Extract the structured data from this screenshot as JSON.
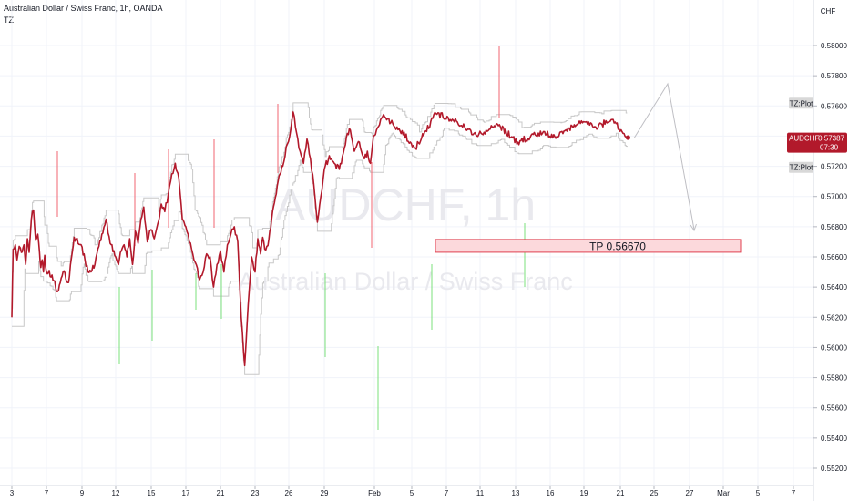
{
  "header": {
    "title": "Australian Dollar / Swiss Franc, 1h, OANDA",
    "indicator": "TZ"
  },
  "currency_label": "CHF",
  "watermark": {
    "symbol": "AUDCHF, 1h",
    "name": "Australian Dollar / Swiss Franc"
  },
  "price_tag": {
    "symbol": "AUDCHF",
    "price": "0.57387",
    "countdown": "07:30"
  },
  "tz_plot_label": "TZ:Plot",
  "tp_label": "TP 0.56670",
  "colors": {
    "price": "#b2192b",
    "wick_up": "#f06570",
    "wick_down": "#7be07b",
    "channel": "#c8c8c8",
    "tp_fill": "#fcd9dc",
    "tp_border": "#e0404f",
    "grid": "#f0f3fa"
  },
  "chart_data": {
    "type": "line",
    "x_ticks": [
      "3",
      "7",
      "9",
      "12",
      "15",
      "17",
      "21",
      "23",
      "26",
      "29",
      "Feb",
      "5",
      "7",
      "11",
      "13",
      "16",
      "19",
      "21",
      "25",
      "27",
      "Mar",
      "5",
      "7"
    ],
    "y_ticks": [
      "0.58000",
      "0.57800",
      "0.57600",
      "0.57400",
      "0.57200",
      "0.57000",
      "0.56800",
      "0.56600",
      "0.56400",
      "0.56200",
      "0.56000",
      "0.55800",
      "0.55600",
      "0.55400",
      "0.55200"
    ],
    "ylim": [
      0.5512,
      0.582
    ],
    "current_price": 0.57387,
    "take_profit": 0.5667,
    "series": [
      {
        "x": [
          0,
          0.3,
          0.8,
          1.2,
          1.7,
          2.2,
          2.8,
          3.2,
          3.6,
          4.0,
          4.5,
          5.0,
          5.5,
          6.0,
          6.4,
          6.7,
          7.0,
          7.3,
          7.6,
          8.0,
          8.4,
          8.8,
          9.2,
          9.6,
          10.0,
          10.5,
          11.0,
          11.5,
          12.0,
          12.3,
          12.6,
          13.0,
          13.4,
          13.8,
          14.2,
          14.6,
          15.0,
          15.4,
          15.8,
          16.2,
          16.6,
          17.0,
          17.5,
          18.0,
          18.5,
          19.0,
          19.5,
          20.0,
          20.5,
          21.0,
          21.5,
          22.0,
          22.5,
          23.0,
          23.5,
          24.0,
          24.5,
          25.0,
          25.5,
          26.0,
          26.5,
          27.0,
          27.5,
          28.0,
          28.5,
          29.0,
          29.5,
          30.0,
          30.5,
          31.0,
          31.5,
          32.0,
          32.5,
          33.0,
          33.4,
          33.8,
          34.1,
          34.4,
          34.7,
          35.0,
          35.4,
          35.8,
          36.2,
          36.6,
          37.0,
          37.5,
          38.0,
          38.5,
          39.0,
          39.5,
          40.0,
          40.5,
          41.0,
          41.5,
          42.0,
          42.5,
          43.0,
          43.5,
          44.0,
          44.5,
          45.0,
          45.5,
          46.0,
          46.5,
          47.0,
          47.3,
          47.6,
          47.9,
          48.2,
          48.6,
          49.0,
          49.5,
          50.0,
          50.5,
          51.0,
          51.5,
          52.0,
          52.5,
          53.0,
          53.4,
          53.8,
          54.2
        ],
        "y": [
          0.562,
          0.5665,
          0.5668,
          0.5658,
          0.5667,
          0.5663,
          0.5668,
          0.5655,
          0.5672,
          0.5663,
          0.5685,
          0.5691,
          0.5671,
          0.5675,
          0.5663,
          0.5653,
          0.5658,
          0.565,
          0.5661,
          0.565,
          0.5648,
          0.5637,
          0.565,
          0.5643,
          0.5673,
          0.5668,
          0.565,
          0.5655,
          0.5675,
          0.5685,
          0.5669,
          0.566,
          0.5655,
          0.5664,
          0.5668,
          0.566,
          0.5672,
          0.5655,
          0.5677,
          0.5669,
          0.5685,
          0.5693,
          0.567,
          0.5678,
          0.5672,
          0.5682,
          0.5695,
          0.569,
          0.5702,
          0.5715,
          0.5722,
          0.5712,
          0.5685,
          0.568,
          0.567,
          0.5662,
          0.5655,
          0.5645,
          0.565,
          0.5662,
          0.566,
          0.564,
          0.5655,
          0.5664,
          0.565,
          0.5668,
          0.5675,
          0.568,
          0.567,
          0.562,
          0.5588,
          0.5628,
          0.566,
          0.565,
          0.5672,
          0.5662,
          0.5673,
          0.5665,
          0.5667,
          0.5672,
          0.5685,
          0.5696,
          0.5707,
          0.5715,
          0.572,
          0.5733,
          0.574,
          0.5756,
          0.5742,
          0.573,
          0.5722,
          0.5738,
          0.5725,
          0.5707,
          0.5683,
          0.57,
          0.5718,
          0.5727,
          0.5722,
          0.5718,
          0.5732,
          0.5745,
          0.573,
          0.5736,
          0.5725,
          0.573,
          0.5722,
          0.574,
          0.5753,
          0.5745,
          0.5732,
          0.5755,
          0.575,
          0.574,
          0.5748,
          0.5736,
          0.5742,
          0.574,
          0.575,
          0.5746,
          0.5751,
          0.5739
        ]
      }
    ]
  }
}
